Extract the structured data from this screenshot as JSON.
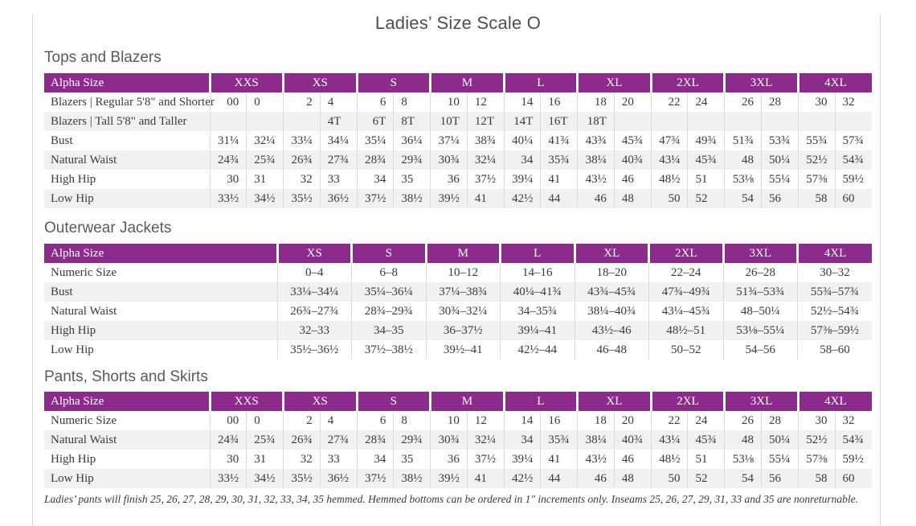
{
  "page": {
    "title": "Ladies’ Size Scale O",
    "footnote": "Ladies’ pants will finish 25, 26, 27, 28, 29, 30, 31, 32, 33, 34, 35 hemmed. Hemmed bottoms can be ordered in 1\" increments only. Inseams 25, 26, 27, 29, 31, 33 and 35 are nonreturnable."
  },
  "colors": {
    "header_purple": "#8d2b8c",
    "row_stripe": "#f2f1f1",
    "divider": "#dcdbdb",
    "heading_gray": "#595a5c"
  },
  "tables": [
    {
      "id": "tops-and-blazers",
      "heading": "Tops and Blazers",
      "label_header": "Alpha Size",
      "paired": true,
      "label_col_width": 206,
      "sizes": [
        "XXS",
        "XS",
        "S",
        "M",
        "L",
        "XL",
        "2XL",
        "3XL",
        "4XL"
      ],
      "rows": [
        {
          "label": "Blazers  |  Regular 5'8\" and Shorter",
          "values": [
            "00",
            "0",
            "2",
            "4",
            "6",
            "8",
            "10",
            "12",
            "14",
            "16",
            "18",
            "20",
            "22",
            "24",
            "26",
            "28",
            "30",
            "32"
          ]
        },
        {
          "label": "Blazers  |  Tall 5'8\" and Taller",
          "values": [
            "",
            "",
            "",
            "4T",
            "6T",
            "8T",
            "10T",
            "12T",
            "14T",
            "16T",
            "18T",
            "",
            "",
            "",
            "",
            "",
            "",
            ""
          ]
        },
        {
          "label": "Bust",
          "values": [
            "31¼",
            "32¼",
            "33¼",
            "34¼",
            "35¼",
            "36¼",
            "37¼",
            "38¾",
            "40¼",
            "41¾",
            "43¾",
            "45¾",
            "47¾",
            "49¾",
            "51¾",
            "53¾",
            "55¾",
            "57¾"
          ]
        },
        {
          "label": "Natural Waist",
          "values": [
            "24¾",
            "25¾",
            "26¾",
            "27¾",
            "28¾",
            "29¾",
            "30¾",
            "32¼",
            "34",
            "35¾",
            "38¼",
            "40¾",
            "43¼",
            "45¾",
            "48",
            "50¼",
            "52½",
            "54¾"
          ]
        },
        {
          "label": "High Hip",
          "values": [
            "30",
            "31",
            "32",
            "33",
            "34",
            "35",
            "36",
            "37½",
            "39¼",
            "41",
            "43½",
            "46",
            "48½",
            "51",
            "53⅛",
            "55¼",
            "57⅜",
            "59½"
          ]
        },
        {
          "label": "Low Hip",
          "values": [
            "33½",
            "34½",
            "35½",
            "36½",
            "37½",
            "38½",
            "39½",
            "41",
            "42½",
            "44",
            "46",
            "48",
            "50",
            "52",
            "54",
            "56",
            "58",
            "60"
          ]
        }
      ]
    },
    {
      "id": "outerwear-jackets",
      "heading": "Outerwear Jackets",
      "label_header": "Alpha Size",
      "paired": false,
      "label_col_width": 290,
      "sizes": [
        "XS",
        "S",
        "M",
        "L",
        "XL",
        "2XL",
        "3XL",
        "4XL"
      ],
      "rows": [
        {
          "label": "Numeric Size",
          "values": [
            "0–4",
            "6–8",
            "10–12",
            "14–16",
            "18–20",
            "22–24",
            "26–28",
            "30–32"
          ]
        },
        {
          "label": "Bust",
          "values": [
            "33¼–34¼",
            "35¼–36¼",
            "37¼–38¾",
            "40¼–41¾",
            "43¾–45¾",
            "47¾–49¾",
            "51¾–53¾",
            "55¾–57¾"
          ]
        },
        {
          "label": "Natural Waist",
          "values": [
            "26¾–27¾",
            "28¾–29¾",
            "30¾–32¼",
            "34–35¾",
            "38¼–40¾",
            "43¼–45¾",
            "48–50¼",
            "52½–54¾"
          ]
        },
        {
          "label": "High Hip",
          "values": [
            "32–33",
            "34–35",
            "36–37½",
            "39¼–41",
            "43½–46",
            "48½–51",
            "53⅛–55¼",
            "57⅜–59½"
          ]
        },
        {
          "label": "Low Hip",
          "values": [
            "35½–36½",
            "37½–38½",
            "39½–41",
            "42½–44",
            "46–48",
            "50–52",
            "54–56",
            "58–60"
          ]
        }
      ]
    },
    {
      "id": "pants-shorts-skirts",
      "heading": "Pants, Shorts and Skirts",
      "label_header": "Alpha Size",
      "paired": true,
      "label_col_width": 206,
      "sizes": [
        "XXS",
        "XS",
        "S",
        "M",
        "L",
        "XL",
        "2XL",
        "3XL",
        "4XL"
      ],
      "rows": [
        {
          "label": "Numeric Size",
          "values": [
            "00",
            "0",
            "2",
            "4",
            "6",
            "8",
            "10",
            "12",
            "14",
            "16",
            "18",
            "20",
            "22",
            "24",
            "26",
            "28",
            "30",
            "32"
          ]
        },
        {
          "label": "Natural Waist",
          "values": [
            "24¾",
            "25¾",
            "26¾",
            "27¾",
            "28¾",
            "29¾",
            "30¾",
            "32¼",
            "34",
            "35¾",
            "38¼",
            "40¾",
            "43¼",
            "45¾",
            "48",
            "50¼",
            "52½",
            "54¾"
          ]
        },
        {
          "label": "High Hip",
          "values": [
            "30",
            "31",
            "32",
            "33",
            "34",
            "35",
            "36",
            "37½",
            "39¼",
            "41",
            "43½",
            "46",
            "48½",
            "51",
            "53⅛",
            "55¼",
            "57⅜",
            "59½"
          ]
        },
        {
          "label": "Low Hip",
          "values": [
            "33½",
            "34½",
            "35½",
            "36½",
            "37½",
            "38½",
            "39½",
            "41",
            "42½",
            "44",
            "46",
            "48",
            "50",
            "52",
            "54",
            "56",
            "58",
            "60"
          ]
        }
      ]
    }
  ]
}
